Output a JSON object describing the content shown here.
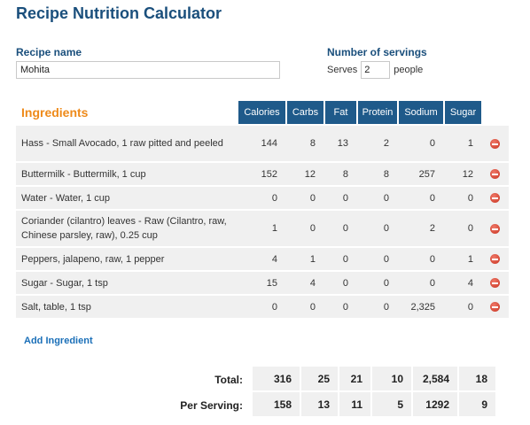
{
  "app": {
    "title": "Recipe Nutrition Calculator"
  },
  "recipe": {
    "label": "Recipe name",
    "value": "Mohita"
  },
  "servings": {
    "label": "Number of servings",
    "prefix": "Serves",
    "value": "2",
    "suffix": "people"
  },
  "ingredients": {
    "title": "Ingredients",
    "columns": [
      "Calories",
      "Carbs",
      "Fat",
      "Protein",
      "Sodium",
      "Sugar"
    ],
    "rows": [
      {
        "name": "Hass - Small Avocado, 1 raw pitted and peeled",
        "values": [
          "144",
          "8",
          "13",
          "2",
          "0",
          "1"
        ]
      },
      {
        "name": "Buttermilk - Buttermilk, 1 cup",
        "values": [
          "152",
          "12",
          "8",
          "8",
          "257",
          "12"
        ]
      },
      {
        "name": "Water - Water, 1 cup",
        "values": [
          "0",
          "0",
          "0",
          "0",
          "0",
          "0"
        ]
      },
      {
        "name": "Coriander (cilantro) leaves - Raw (Cilantro, raw, Chinese parsley, raw), 0.25 cup",
        "values": [
          "1",
          "0",
          "0",
          "0",
          "2",
          "0"
        ]
      },
      {
        "name": "Peppers, jalapeno, raw, 1 pepper",
        "values": [
          "4",
          "1",
          "0",
          "0",
          "0",
          "1"
        ]
      },
      {
        "name": "Sugar - Sugar, 1 tsp",
        "values": [
          "15",
          "4",
          "0",
          "0",
          "0",
          "4"
        ]
      },
      {
        "name": "Salt, table, 1 tsp",
        "values": [
          "0",
          "0",
          "0",
          "0",
          "2,325",
          "0"
        ]
      }
    ],
    "add_label": "Add Ingredient",
    "remove_icon": "remove-circle-icon",
    "remove_color": "#d9412c"
  },
  "totals": {
    "total_label": "Total:",
    "total_values": [
      "316",
      "25",
      "21",
      "10",
      "2,584",
      "18"
    ],
    "per_serving_label": "Per Serving:",
    "per_serving_values": [
      "158",
      "13",
      "11",
      "5",
      "1292",
      "9"
    ]
  },
  "colors": {
    "header_bg": "#1f5a8a",
    "title_blue": "#1a4f7c",
    "ingredients_orange": "#ee8a1a",
    "row_bg": "#f0f0f0",
    "link_blue": "#1a6fb8"
  }
}
